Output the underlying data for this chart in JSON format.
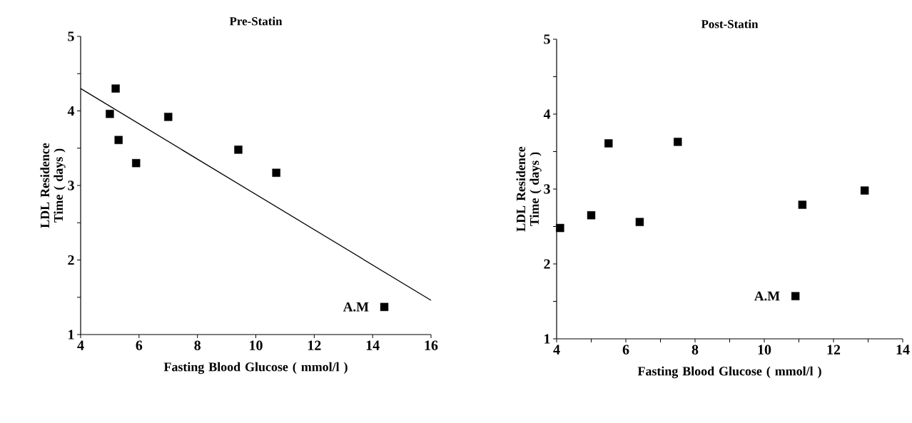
{
  "chart_data": [
    {
      "type": "scatter",
      "title": "Pre-Statin",
      "xlabel": "Fasting Blood Glucose ( mmol/l )",
      "ylabel": "LDL Residence Time ( days )",
      "marker": "square",
      "xlim": [
        4,
        16
      ],
      "xticks": [
        4,
        6,
        8,
        10,
        12,
        14,
        16
      ],
      "ylim": [
        1,
        5
      ],
      "yticks": [
        1,
        {
          "value": 1.5,
          "label": null
        },
        2,
        {
          "value": 2.5,
          "label": null
        },
        3,
        {
          "value": 3.5,
          "label": null
        },
        4,
        {
          "value": 4.5,
          "label": null
        },
        5
      ],
      "series": [
        {
          "color": "#000000",
          "x": [
            5.0,
            5.2,
            5.3,
            5.9,
            7.0,
            9.4,
            10.7,
            14.4
          ],
          "values": [
            3.96,
            4.3,
            3.61,
            3.3,
            3.92,
            3.48,
            3.17,
            1.37
          ]
        },
        {
          "type": "line",
          "color": "#000000",
          "marker": "none",
          "line_style": "solid",
          "x": [
            4,
            16
          ],
          "values": [
            4.3,
            1.46
          ]
        }
      ],
      "annotations": [
        {
          "text": "A.M",
          "x": 14.4,
          "y": 1.37
        }
      ]
    },
    {
      "type": "scatter",
      "title": "Post-Statin",
      "xlabel": "Fasting Blood Glucose ( mmol/l )",
      "ylabel": "LDL Residence Time ( days )",
      "marker": "square",
      "xlim": [
        4,
        14
      ],
      "xticks": [
        4,
        {
          "value": 5,
          "label": null
        },
        6,
        {
          "value": 7,
          "label": null
        },
        8,
        {
          "value": 9,
          "label": null
        },
        10,
        {
          "value": 11,
          "label": null
        },
        12,
        {
          "value": 13,
          "label": null
        },
        14
      ],
      "ylim": [
        1,
        5
      ],
      "yticks": [
        1,
        {
          "value": 1.5,
          "label": null
        },
        2,
        {
          "value": 2.5,
          "label": null
        },
        3,
        {
          "value": 3.5,
          "label": null
        },
        4,
        {
          "value": 4.5,
          "label": null
        },
        5
      ],
      "series": [
        {
          "color": "#000000",
          "x": [
            4.1,
            5.0,
            5.5,
            6.4,
            7.5,
            10.9,
            11.1,
            12.9
          ],
          "values": [
            2.48,
            2.65,
            3.61,
            2.56,
            3.63,
            1.57,
            2.79,
            2.98
          ]
        }
      ],
      "annotations": [
        {
          "text": "A.M",
          "x": 10.9,
          "y": 1.57
        }
      ]
    }
  ]
}
